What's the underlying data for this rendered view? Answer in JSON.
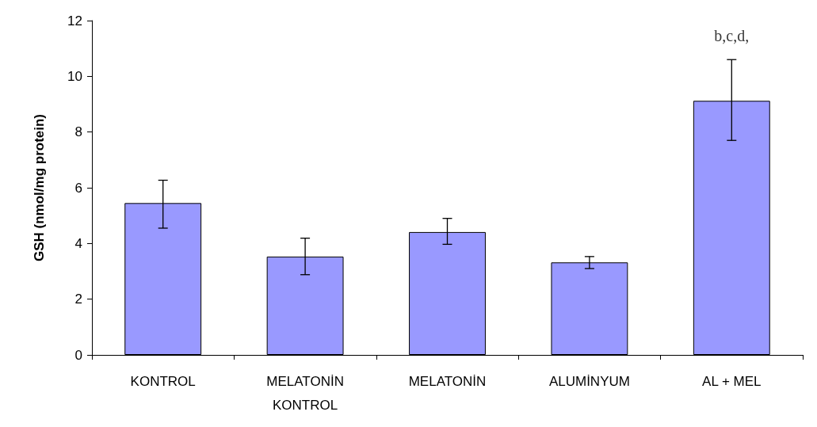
{
  "chart_data": {
    "type": "bar",
    "ylabel": "GSH (nmol/mg protein)",
    "categories": [
      "KONTROL",
      "MELATONİN\nKONTROL",
      "MELATONİN",
      "ALUMİNYUM",
      "AL + MEL"
    ],
    "values": [
      5.45,
      3.53,
      4.41,
      3.32,
      9.12
    ],
    "errors": [
      [
        4.55,
        6.27
      ],
      [
        2.88,
        4.19
      ],
      [
        3.97,
        4.9
      ],
      [
        3.1,
        3.53
      ],
      [
        7.7,
        10.6
      ]
    ],
    "color": "#9999ff",
    "ylim": [
      0,
      12
    ],
    "yticks": [
      0,
      2,
      4,
      6,
      8,
      10,
      12
    ],
    "grid": false,
    "annotations": [
      {
        "text": "b,c,d,",
        "x": "AL + MEL",
        "y": 10.6
      }
    ]
  }
}
